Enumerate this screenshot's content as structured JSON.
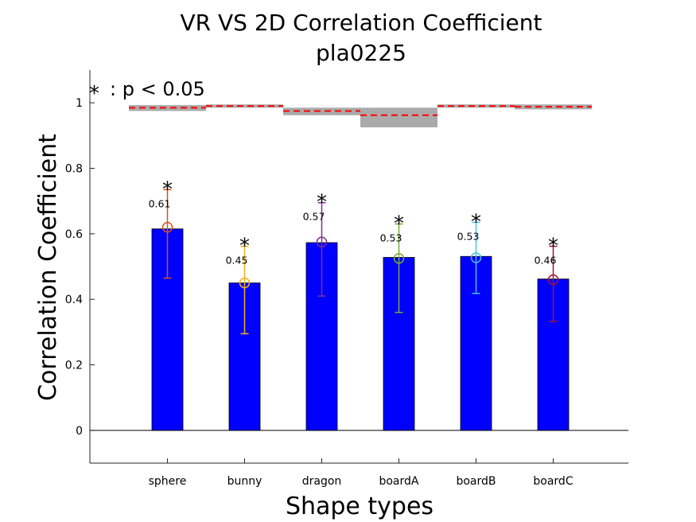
{
  "chart_data": {
    "type": "bar",
    "title": "VR VS 2D Correlation Coefficient",
    "subtitle": "pla0225",
    "xlabel": "Shape types",
    "ylabel": "Correlation Coefficient",
    "ylim": [
      -0.1,
      1.1
    ],
    "yticks": [
      "0",
      "0.2",
      "0.4",
      "0.6",
      "0.8",
      "1"
    ],
    "ytick_values": [
      0,
      0.2,
      0.4,
      0.6,
      0.8,
      1
    ],
    "categories": [
      "sphere",
      "bunny",
      "dragon",
      "boardA",
      "boardB",
      "boardC"
    ],
    "values": [
      0.615,
      0.45,
      0.573,
      0.528,
      0.531,
      0.462
    ],
    "data_labels": [
      "0.61",
      "0.45",
      "0.57",
      "0.53",
      "0.53",
      "0.46"
    ],
    "error_bars": {
      "means": [
        0.62,
        0.45,
        0.575,
        0.525,
        0.527,
        0.46
      ],
      "lower": [
        0.465,
        0.295,
        0.41,
        0.36,
        0.418,
        0.332
      ],
      "upper": [
        0.735,
        0.562,
        0.695,
        0.63,
        0.635,
        0.562
      ],
      "colors": [
        "#D95319",
        "#EDB120",
        "#7E2F8E",
        "#77AC30",
        "#4DBEEE",
        "#A2142F"
      ]
    },
    "significance_marker": "*",
    "significant": [
      true,
      true,
      true,
      true,
      true,
      true
    ],
    "reference": {
      "line_values": [
        0.985,
        0.99,
        0.975,
        0.962,
        0.99,
        0.988
      ],
      "band_lower": [
        0.975,
        0.985,
        0.962,
        0.925,
        0.985,
        0.98
      ],
      "band_upper": [
        0.993,
        0.995,
        0.985,
        0.985,
        0.995,
        0.995
      ],
      "line_color": "#FF0000",
      "band_color": "#AAAAAA"
    },
    "bar_color": "#0000FF",
    "annotation": ": p < 0.05",
    "grid": false
  }
}
